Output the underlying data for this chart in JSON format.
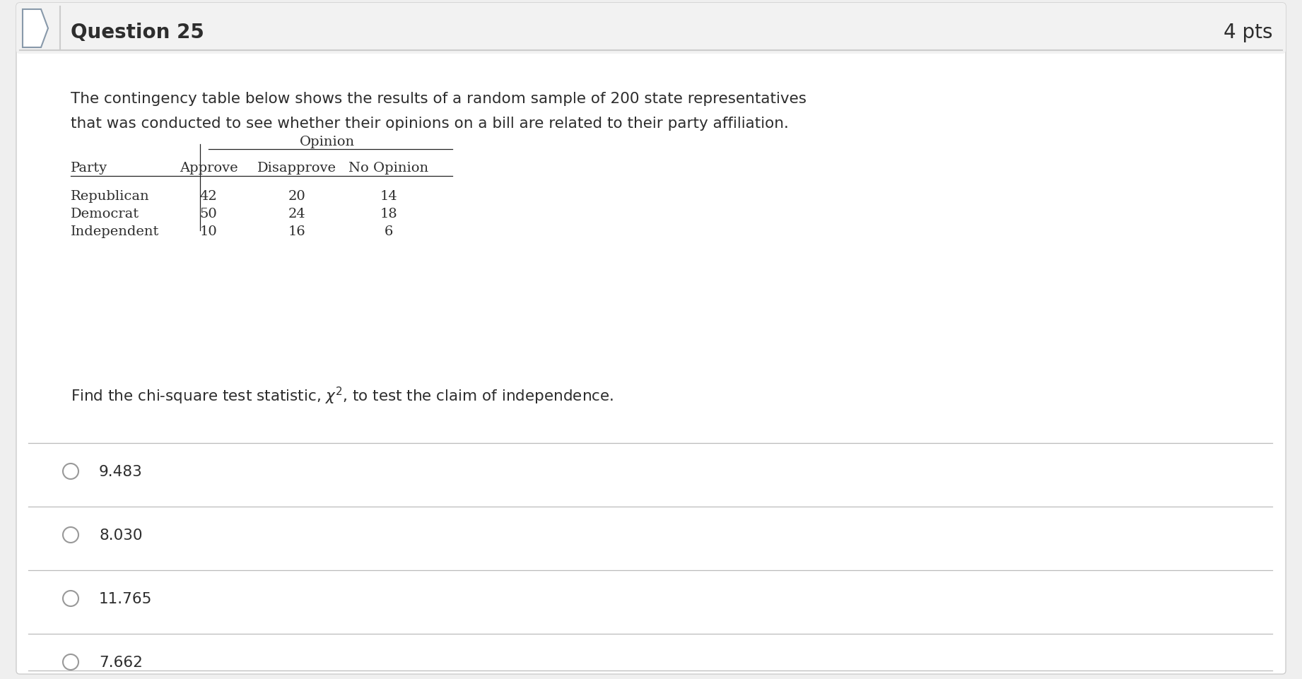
{
  "bg_color": "#efefef",
  "card_color": "#ffffff",
  "header_bg": "#f0f0f0",
  "question_number": "Question 25",
  "pts": "4 pts",
  "description_line1": "The contingency table below shows the results of a random sample of 200 state representatives",
  "description_line2": "that was conducted to see whether their opinions on a bill are related to their party affiliation.",
  "table_header_top": "Opinion",
  "col_headers": [
    "Party",
    "Approve",
    "Disapprove",
    "No Opinion"
  ],
  "rows": [
    [
      "Republican",
      "42",
      "20",
      "14"
    ],
    [
      "Democrat",
      "50",
      "24",
      "18"
    ],
    [
      "Independent",
      "10",
      "16",
      "6"
    ]
  ],
  "chi_text_before": "Find the chi-square test statistic, ",
  "chi_symbol": "$\\chi^2$",
  "chi_text_after": ", to test the claim of independence.",
  "options": [
    "9.483",
    "8.030",
    "11.765",
    "7.662"
  ],
  "title_fontsize": 20,
  "body_fontsize": 15.5,
  "option_fontsize": 15.5,
  "table_fontsize": 14,
  "text_color": "#2d2d2d",
  "line_color": "#bbbbbb",
  "table_line_color": "#222222"
}
